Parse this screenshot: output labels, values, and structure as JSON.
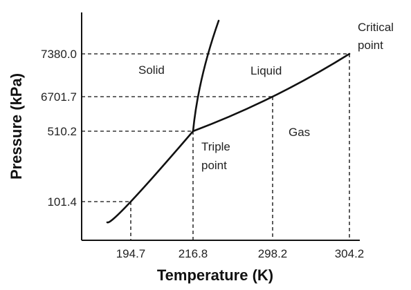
{
  "chart_data": {
    "type": "line",
    "title": "",
    "xlabel": "Temperature (K)",
    "ylabel": "Pressure (kPa)",
    "x_ticks": [
      "194.7",
      "216.8",
      "298.2",
      "304.2"
    ],
    "y_ticks": [
      "101.4",
      "510.2",
      "6701.7",
      "7380.0"
    ],
    "grid": false,
    "reference_lines": "dashed",
    "series": [
      {
        "id": "solid_gas_boundary",
        "points": [
          [
            180.0,
            20.0
          ],
          [
            194.7,
            101.4
          ],
          [
            216.8,
            510.2
          ]
        ]
      },
      {
        "id": "solid_liquid_boundary",
        "points": [
          [
            216.8,
            510.2
          ],
          [
            220.5,
            7000.0
          ],
          [
            224.0,
            11300.0
          ]
        ]
      },
      {
        "id": "liquid_gas_boundary",
        "points": [
          [
            216.8,
            510.2
          ],
          [
            298.2,
            6701.7
          ],
          [
            304.2,
            7380.0
          ]
        ]
      }
    ],
    "annotations": {
      "solid": "Solid",
      "liquid": "Liquid",
      "gas": "Gas",
      "triple_point_line1": "Triple",
      "triple_point_line2": "point",
      "critical_point_line1": "Critical",
      "critical_point_line2": "point"
    },
    "line_color": "#111111",
    "dash_color": "#333333"
  }
}
